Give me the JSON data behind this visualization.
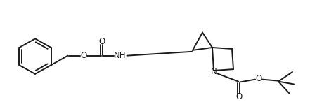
{
  "bg_color": "#ffffff",
  "line_color": "#1a1a1a",
  "line_width": 1.4,
  "font_size": 8.5,
  "figsize": [
    4.78,
    1.46
  ],
  "dpi": 100,
  "xlim": [
    0,
    478
  ],
  "ylim": [
    0,
    146
  ]
}
